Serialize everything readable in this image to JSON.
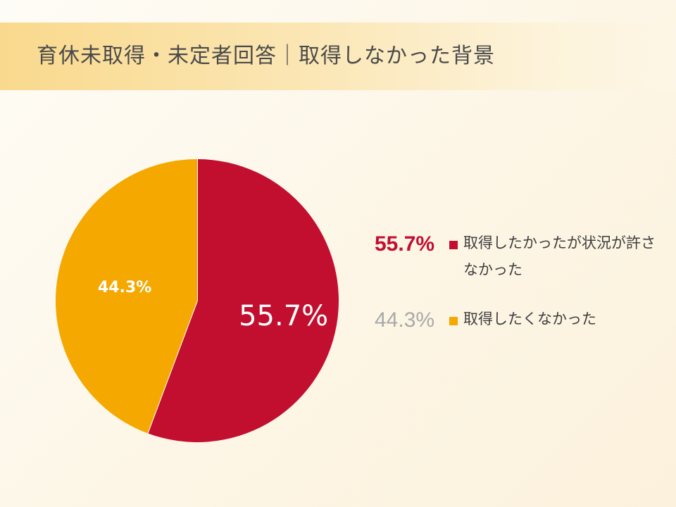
{
  "header": {
    "title": "育休未取得・未定者回答｜取得しなかった背景"
  },
  "colors": {
    "primary": "#c20e2f",
    "secondary": "#f4a800",
    "secondary_pct_text": "#a9a9a9"
  },
  "chart_data": {
    "type": "pie",
    "title": "育休未取得・未定者回答｜取得しなかった背景",
    "slices": [
      {
        "label": "取得したかったが状況が許さなかった",
        "value": 55.7,
        "display": "55.7%",
        "color": "#c20e2f"
      },
      {
        "label": "取得したくなかった",
        "value": 44.3,
        "display": "44.3%",
        "color": "#f4a800"
      }
    ],
    "start_angle": "12 o'clock",
    "direction": "clockwise",
    "legend_position": "right"
  },
  "legend": [
    {
      "pct": "55.7%",
      "label": "取得したかったが状況が許さなかった"
    },
    {
      "pct": "44.3%",
      "label": "取得したくなかった"
    }
  ]
}
